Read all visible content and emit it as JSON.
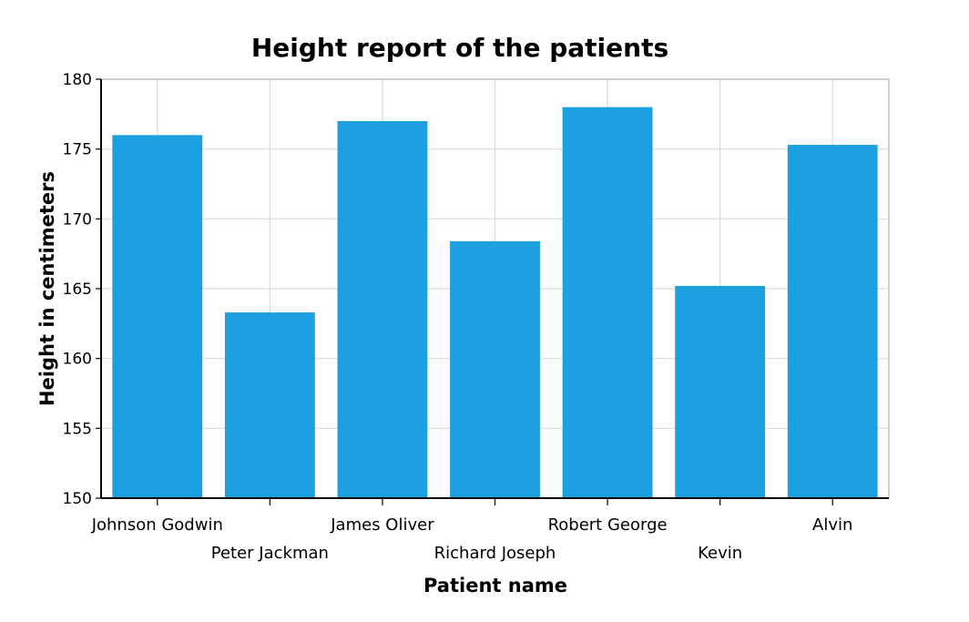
{
  "chart_data": {
    "type": "bar",
    "title": "Height report of the patients",
    "xlabel": "Patient name",
    "ylabel": "Height in centimeters",
    "categories": [
      "Johnson Godwin",
      "Peter Jackman",
      "James Oliver",
      "Richard Joseph",
      "Robert George",
      "Kevin",
      "Alvin"
    ],
    "values": [
      176,
      163.3,
      177,
      168.4,
      178,
      165.2,
      175.3
    ],
    "ylim": [
      150,
      180
    ],
    "yticks": [
      150,
      155,
      160,
      165,
      170,
      175,
      180
    ],
    "grid": true,
    "legend": "none",
    "colors": {
      "bar": "#1ca0e0",
      "grid": "#d9d9d9",
      "axis": "#000000"
    }
  }
}
